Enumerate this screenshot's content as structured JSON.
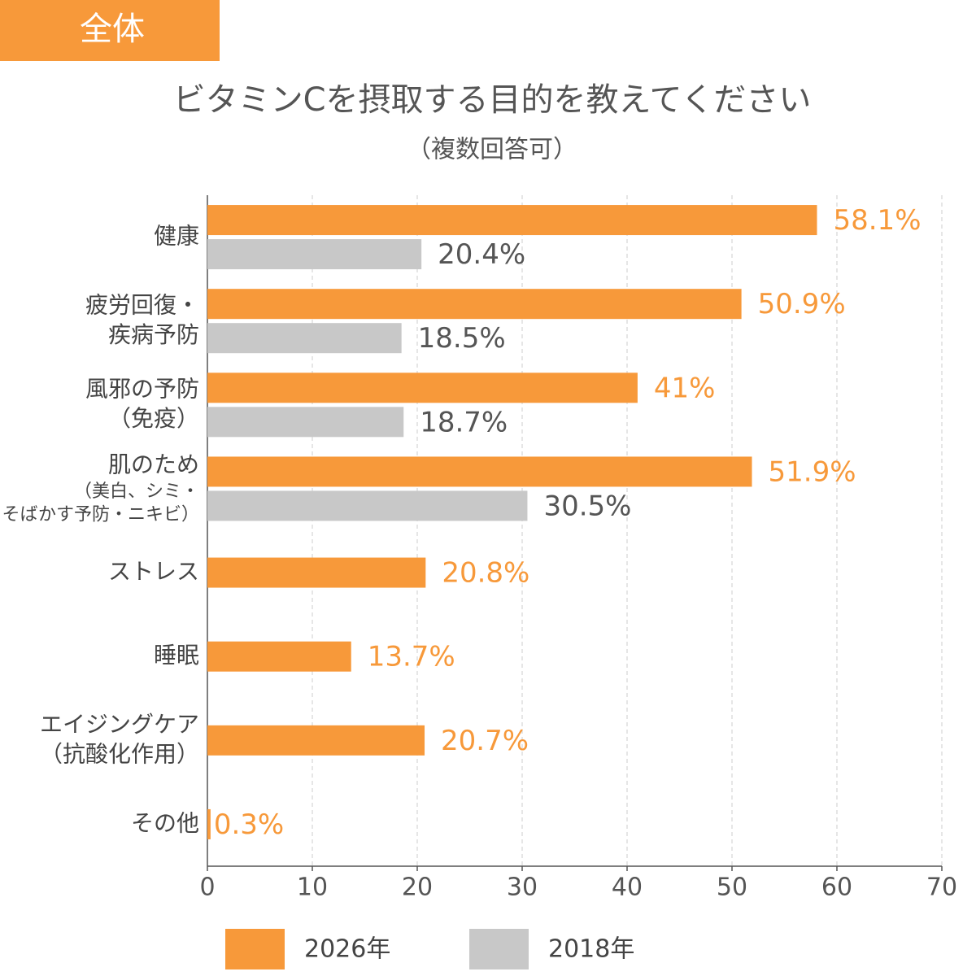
{
  "badge": "全体",
  "chart_data": {
    "type": "hbar",
    "title": "ビタミンCを摂取する目的を教えてください",
    "subtitle": "（複数回答可）",
    "categories": [
      "健康",
      "疲労回復・\n疾病予防",
      "風邪の予防\n（免疫）",
      "肌のため\n（美白、シミ・\nそばかす予防・ニキビ）",
      "ストレス",
      "睡眠",
      "エイジングケア\n（抗酸化作用）",
      "その他"
    ],
    "series": [
      {
        "name": "2026年",
        "color": "#f7993a",
        "values": [
          58.1,
          50.9,
          41,
          51.9,
          20.8,
          13.7,
          20.7,
          0.3
        ],
        "value_labels": [
          "58.1%",
          "50.9%",
          "41%",
          "51.9%",
          "20.8%",
          "13.7%",
          "20.7%",
          "0.3%"
        ]
      },
      {
        "name": "2018年",
        "color": "#c8c8c8",
        "values": [
          20.4,
          18.5,
          18.7,
          30.5,
          null,
          null,
          null,
          null
        ],
        "value_labels": [
          "20.4%",
          "18.5%",
          "18.7%",
          "30.5%",
          null,
          null,
          null,
          null
        ]
      }
    ],
    "xlim": [
      0,
      70
    ],
    "xticks": [
      0,
      10,
      20,
      30,
      40,
      50,
      60,
      70
    ],
    "grid": true
  }
}
